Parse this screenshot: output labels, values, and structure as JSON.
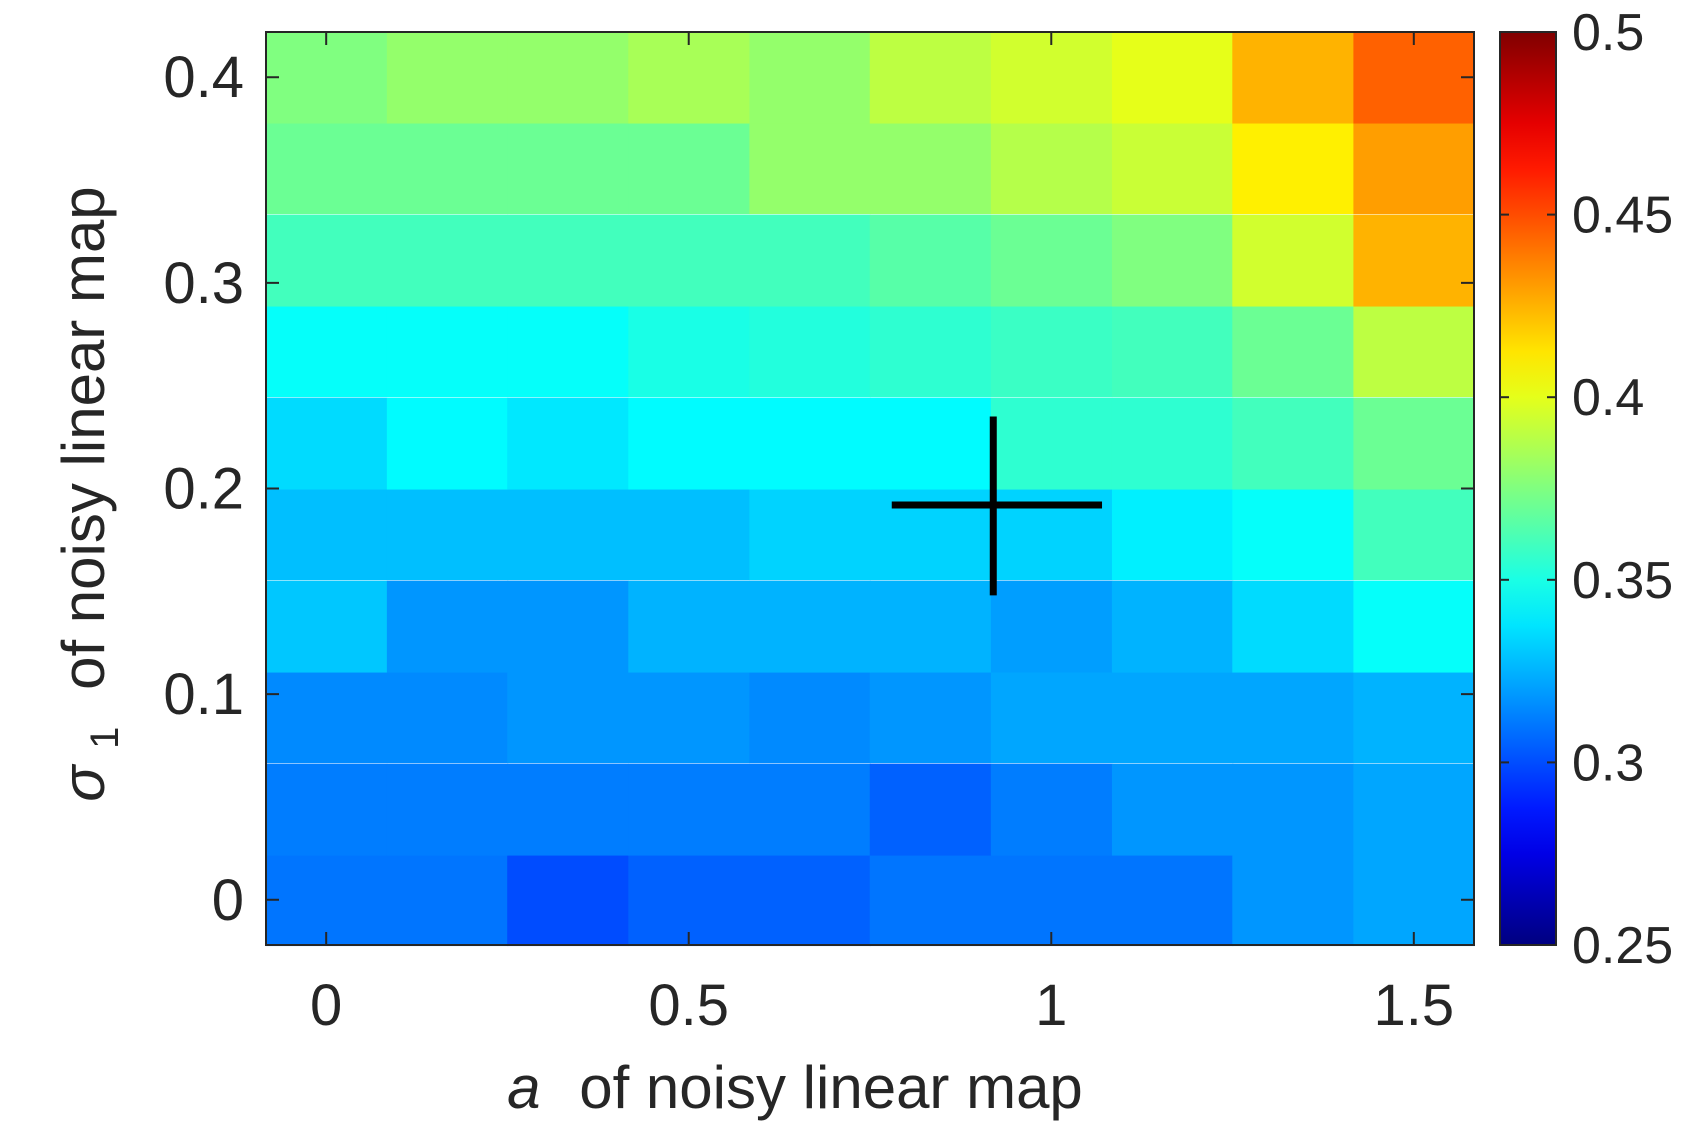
{
  "chart_data": {
    "type": "heatmap",
    "xlabel_var": "a",
    "xlabel_rest": "of noisy linear map",
    "ylabel_var": "σ",
    "ylabel_sub": "1",
    "ylabel_rest": "of noisy linear map",
    "x": [
      0,
      0.167,
      0.333,
      0.5,
      0.667,
      0.833,
      1.0,
      1.167,
      1.333,
      1.5
    ],
    "y": [
      0,
      0.044,
      0.089,
      0.133,
      0.178,
      0.222,
      0.267,
      0.311,
      0.356,
      0.4
    ],
    "xlim": [
      -0.083,
      1.583
    ],
    "ylim": [
      -0.022,
      0.422
    ],
    "xticks": [
      0,
      0.5,
      1,
      1.5
    ],
    "xtick_labels": [
      "0",
      "0.5",
      "1",
      "1.5"
    ],
    "yticks": [
      0,
      0.1,
      0.2,
      0.3,
      0.4
    ],
    "ytick_labels": [
      "0",
      "0.1",
      "0.2",
      "0.3",
      "0.4"
    ],
    "values": [
      [
        0.31,
        0.31,
        0.3,
        0.305,
        0.305,
        0.31,
        0.31,
        0.31,
        0.318,
        0.322
      ],
      [
        0.312,
        0.312,
        0.312,
        0.312,
        0.312,
        0.305,
        0.312,
        0.318,
        0.318,
        0.322
      ],
      [
        0.315,
        0.315,
        0.318,
        0.318,
        0.315,
        0.318,
        0.322,
        0.322,
        0.322,
        0.325
      ],
      [
        0.33,
        0.318,
        0.318,
        0.325,
        0.325,
        0.325,
        0.32,
        0.325,
        0.335,
        0.345
      ],
      [
        0.328,
        0.328,
        0.328,
        0.328,
        0.333,
        0.333,
        0.333,
        0.34,
        0.345,
        0.36
      ],
      [
        0.335,
        0.343,
        0.338,
        0.343,
        0.343,
        0.343,
        0.355,
        0.355,
        0.36,
        0.37
      ],
      [
        0.345,
        0.345,
        0.345,
        0.35,
        0.352,
        0.355,
        0.358,
        0.36,
        0.37,
        0.39
      ],
      [
        0.36,
        0.36,
        0.36,
        0.36,
        0.36,
        0.365,
        0.37,
        0.375,
        0.395,
        0.425
      ],
      [
        0.37,
        0.37,
        0.37,
        0.37,
        0.38,
        0.38,
        0.388,
        0.393,
        0.41,
        0.43
      ],
      [
        0.375,
        0.38,
        0.38,
        0.385,
        0.38,
        0.39,
        0.395,
        0.4,
        0.425,
        0.445
      ]
    ],
    "colormap": "jet",
    "clim": [
      0.25,
      0.5
    ],
    "colorbar_ticks": [
      0.25,
      0.3,
      0.35,
      0.4,
      0.45,
      0.5
    ],
    "colorbar_tick_labels": [
      "0.25",
      "0.3",
      "0.35",
      "0.4",
      "0.45",
      "0.5"
    ],
    "marker": {
      "shape": "plus",
      "color": "#000000",
      "x": 0.92,
      "y": 0.192,
      "x_span": [
        0.78,
        1.07
      ],
      "y_span": [
        0.148,
        0.235
      ]
    },
    "grid": false
  }
}
